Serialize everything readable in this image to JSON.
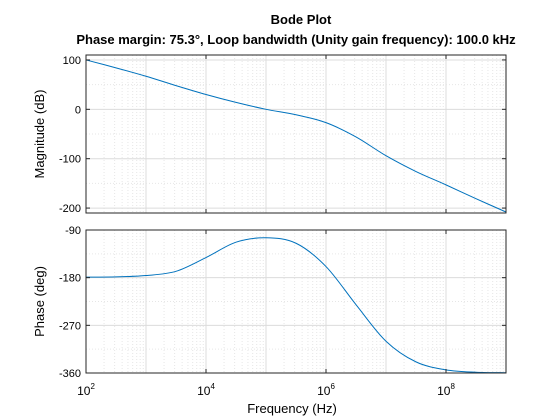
{
  "figure": {
    "title": "Bode Plot",
    "subtitle": "Phase margin: 75.3°, Loop bandwidth (Unity gain frequency): 100.0 kHz"
  },
  "colors": {
    "series": "#0072bd",
    "axes": "#262626",
    "grid": "#d9d9d9"
  },
  "chart_data": [
    {
      "type": "line",
      "title": "Bode Plot",
      "subtitle": "Phase margin: 75.3°, Loop bandwidth (Unity gain frequency): 100.0 kHz",
      "xlabel": "",
      "ylabel": "Magnitude (dB)",
      "xscale": "log",
      "xlim": [
        100,
        1000000000
      ],
      "ylim": [
        -210,
        110
      ],
      "xticks": [
        100,
        10000,
        1000000,
        100000000
      ],
      "xtick_labels": [],
      "yticks": [
        100,
        0,
        -100,
        -200
      ],
      "ytick_labels": [
        "100",
        "0",
        "-100",
        "-200"
      ],
      "grid": "major and minor",
      "series": [
        {
          "x": [
            100,
            316,
            1000,
            3162,
            10000,
            31623,
            100000,
            316228,
            1000000,
            3162278,
            10000000,
            31622777,
            100000000,
            316227766,
            1000000000
          ],
          "y": [
            100,
            84,
            67,
            48,
            30,
            14,
            0,
            -11,
            -27,
            -56,
            -94,
            -126,
            -153,
            -181,
            -208
          ]
        }
      ]
    },
    {
      "type": "line",
      "xlabel": "Frequency  (Hz)",
      "ylabel": "Phase (deg)",
      "xscale": "log",
      "xlim": [
        100,
        1000000000
      ],
      "ylim": [
        -360,
        -90
      ],
      "xticks": [
        100,
        10000,
        1000000,
        100000000
      ],
      "xtick_base": "10",
      "xtick_exponents": [
        "2",
        "4",
        "6",
        "8"
      ],
      "yticks": [
        -90,
        -180,
        -270,
        -360
      ],
      "ytick_labels": [
        "-90",
        "-180",
        "-270",
        "-360"
      ],
      "grid": "major and minor",
      "series": [
        {
          "x": [
            100,
            316,
            1000,
            3162,
            10000,
            31623,
            100000,
            316228,
            1000000,
            3162278,
            10000000,
            31622777,
            100000000,
            316227766,
            1000000000
          ],
          "y": [
            -179,
            -178.5,
            -176,
            -168,
            -142,
            -113,
            -104.7,
            -115,
            -159,
            -231,
            -300,
            -339,
            -354,
            -358.5,
            -359.5
          ]
        }
      ]
    }
  ]
}
